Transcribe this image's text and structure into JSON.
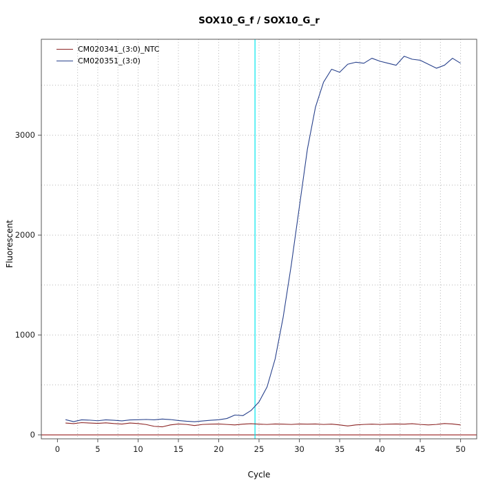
{
  "chart_data": {
    "type": "line",
    "title": "SOX10_G_f / SOX10_G_r",
    "xlabel": "Cycle",
    "ylabel": "Fluorescent",
    "xlim": [
      -2,
      52
    ],
    "ylim": [
      -40,
      3960
    ],
    "x_ticks": [
      0,
      5,
      10,
      15,
      20,
      25,
      30,
      35,
      40,
      45,
      50
    ],
    "y_ticks": [
      0,
      1000,
      2000,
      3000
    ],
    "grid": {
      "on": true,
      "x_step": 2.5,
      "x_max": 50,
      "y_step": 500,
      "y_max": 3500,
      "color": "#b4b4b4"
    },
    "threshold_line": {
      "y": 0,
      "color": "#8b0000"
    },
    "ct_line": {
      "x": 24.5,
      "color": "#00e5ee"
    },
    "legend_position": "top-left",
    "axis_color": "#555555",
    "tick_label_color": "#1a1a1a",
    "x": [
      1,
      2,
      3,
      4,
      5,
      6,
      7,
      8,
      9,
      10,
      11,
      12,
      13,
      14,
      15,
      16,
      17,
      18,
      19,
      20,
      21,
      22,
      23,
      24,
      25,
      26,
      27,
      28,
      29,
      30,
      31,
      32,
      33,
      34,
      35,
      36,
      37,
      38,
      39,
      40,
      41,
      42,
      43,
      44,
      45,
      46,
      47,
      48,
      49,
      50
    ],
    "series": [
      {
        "name": "CM020341_(3:0)_NTC",
        "color": "#8b2323",
        "values": [
          118,
          112,
          122,
          118,
          115,
          120,
          113,
          108,
          118,
          113,
          103,
          85,
          80,
          99,
          109,
          104,
          93,
          104,
          107,
          109,
          104,
          99,
          107,
          111,
          107,
          104,
          109,
          107,
          104,
          109,
          107,
          109,
          104,
          107,
          99,
          89,
          99,
          104,
          107,
          104,
          107,
          109,
          107,
          111,
          104,
          99,
          104,
          113,
          109,
          99
        ]
      },
      {
        "name": "CM020351_(3:0)",
        "color": "#27408b",
        "values": [
          152,
          132,
          150,
          147,
          141,
          150,
          146,
          140,
          149,
          151,
          154,
          150,
          158,
          153,
          143,
          136,
          131,
          139,
          146,
          151,
          163,
          198,
          192,
          243,
          330,
          480,
          760,
          1180,
          1700,
          2280,
          2860,
          3280,
          3530,
          3660,
          3630,
          3710,
          3730,
          3720,
          3770,
          3740,
          3720,
          3700,
          3790,
          3760,
          3750,
          3710,
          3670,
          3700,
          3770,
          3720
        ]
      }
    ]
  }
}
